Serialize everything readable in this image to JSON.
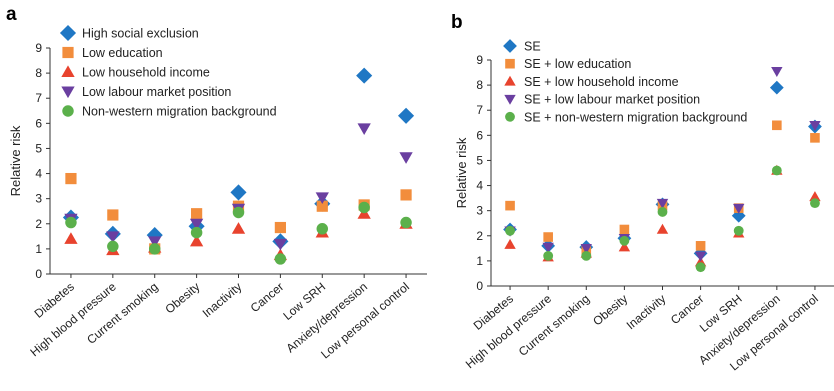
{
  "chart_data": [
    {
      "type": "scatter",
      "panel_label": "a",
      "ylabel": "Relative risk",
      "ylim": [
        0,
        9
      ],
      "yticks": [
        0,
        1,
        2,
        3,
        4,
        5,
        6,
        7,
        8,
        9
      ],
      "categories": [
        "Diabetes",
        "High blood pressure",
        "Current smoking",
        "Obesity",
        "Inactivity",
        "Cancer",
        "Low SRH",
        "Anxiety/depression",
        "Low personal control"
      ],
      "legend_position": "top-left",
      "series": [
        {
          "name": "High social exclusion",
          "marker": "diamond",
          "color": "#1f77c4",
          "values": [
            2.25,
            1.6,
            1.55,
            1.9,
            3.25,
            1.3,
            2.8,
            7.9,
            6.3
          ]
        },
        {
          "name": "Low education",
          "marker": "square",
          "color": "#f28d3c",
          "values": [
            3.8,
            2.35,
            1.0,
            2.4,
            2.7,
            1.85,
            2.7,
            2.75,
            3.15
          ]
        },
        {
          "name": "Low household income",
          "marker": "triangle-up",
          "color": "#e8432e",
          "values": [
            1.4,
            0.95,
            1.05,
            1.3,
            1.8,
            0.75,
            1.65,
            2.4,
            2.0
          ]
        },
        {
          "name": "Low labour market position",
          "marker": "triangle-down",
          "color": "#6a3fa0",
          "values": [
            2.2,
            1.5,
            1.3,
            2.0,
            2.6,
            1.2,
            3.05,
            5.8,
            4.65
          ]
        },
        {
          "name": "Non-western migration background",
          "marker": "circle",
          "color": "#5bb04b",
          "values": [
            2.05,
            1.1,
            1.0,
            1.65,
            2.45,
            0.6,
            1.8,
            2.65,
            2.05
          ]
        }
      ]
    },
    {
      "type": "scatter",
      "panel_label": "b",
      "ylabel": "Relative risk",
      "ylim": [
        0,
        9
      ],
      "yticks": [
        0,
        1,
        2,
        3,
        4,
        5,
        6,
        7,
        8,
        9
      ],
      "categories": [
        "Diabetes",
        "High blood pressure",
        "Current smoking",
        "Obesity",
        "Inactivity",
        "Cancer",
        "Low SRH",
        "Anxiety/depression",
        "Low personal control"
      ],
      "legend_position": "top-left",
      "series": [
        {
          "name": "SE",
          "marker": "diamond",
          "color": "#1f77c4",
          "values": [
            2.25,
            1.6,
            1.55,
            1.9,
            3.25,
            1.3,
            2.8,
            7.9,
            6.35
          ]
        },
        {
          "name": "SE + low education",
          "marker": "square",
          "color": "#f28d3c",
          "values": [
            3.2,
            1.95,
            1.4,
            2.25,
            3.2,
            1.6,
            3.1,
            6.4,
            5.9
          ]
        },
        {
          "name": "SE + low household income",
          "marker": "triangle-up",
          "color": "#e8432e",
          "values": [
            1.65,
            1.15,
            1.3,
            1.55,
            2.25,
            0.95,
            2.1,
            4.6,
            3.55
          ]
        },
        {
          "name": "SE + low labour market position",
          "marker": "triangle-down",
          "color": "#6a3fa0",
          "values": [
            2.2,
            1.55,
            1.5,
            1.9,
            3.3,
            1.2,
            3.1,
            8.55,
            6.4
          ]
        },
        {
          "name": "SE + non-western migration background",
          "marker": "circle",
          "color": "#5bb04b",
          "values": [
            2.2,
            1.2,
            1.2,
            1.8,
            2.95,
            0.75,
            2.2,
            4.6,
            3.3
          ]
        }
      ]
    }
  ]
}
